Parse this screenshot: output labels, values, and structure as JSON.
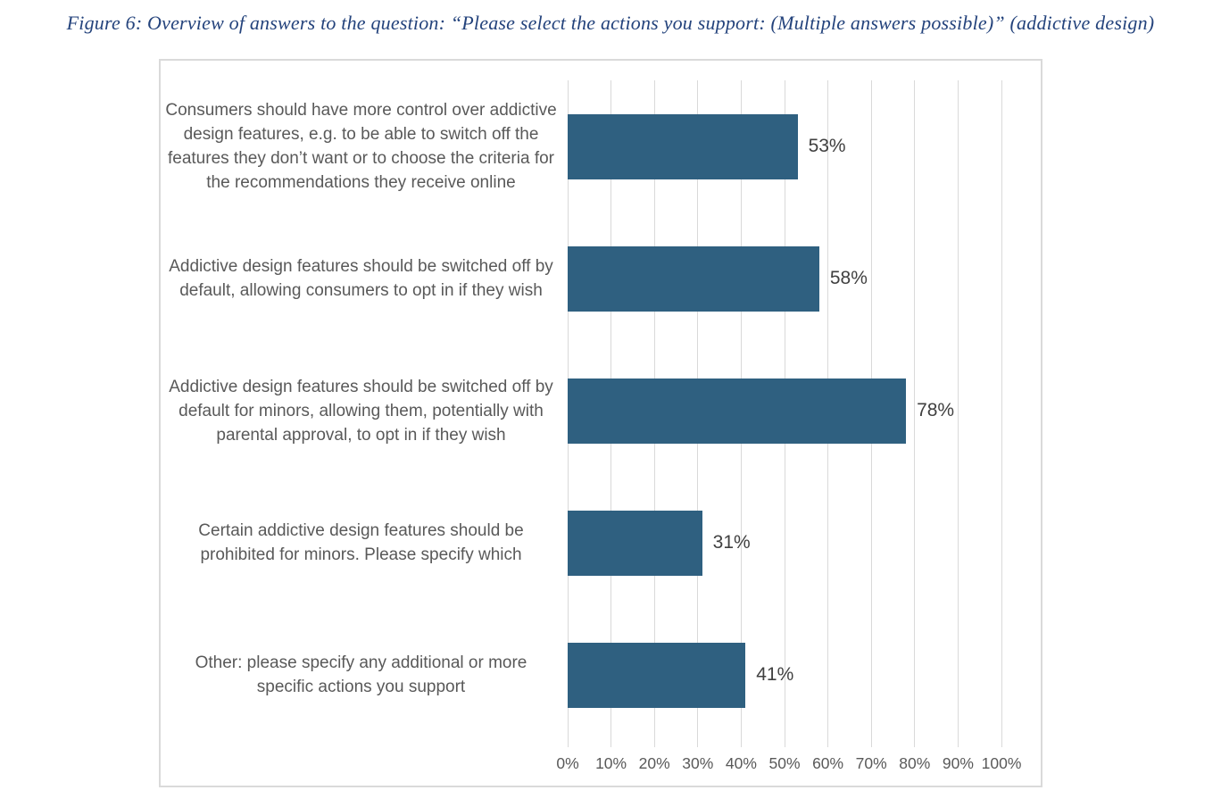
{
  "figure_caption": "Figure 6: Overview of answers to the question: “Please select the actions you support: (Multiple answers possible)” (addictive design)",
  "chart_data": {
    "type": "bar",
    "orientation": "horizontal",
    "title": "",
    "categories": [
      "Consumers should have more control over addictive design features, e.g. to be able to switch off the features they don’t want or to choose the criteria for the recommendations they receive online",
      "Addictive design features should be switched off by default, allowing consumers to opt in if they wish",
      "Addictive design features should be switched off by default for minors, allowing them, potentially with parental approval, to opt in if they wish",
      "Certain addictive design features should be prohibited for minors. Please specify which",
      "Other: please specify any additional or more specific actions you support"
    ],
    "values": [
      53,
      58,
      78,
      31,
      41
    ],
    "value_labels": [
      "53%",
      "58%",
      "78%",
      "31%",
      "41%"
    ],
    "x_ticks": [
      "0%",
      "10%",
      "20%",
      "30%",
      "40%",
      "50%",
      "60%",
      "70%",
      "80%",
      "90%",
      "100%"
    ],
    "xlim": [
      0,
      100
    ],
    "grid": "vertical-gridlines",
    "legend": "none",
    "colors": {
      "bar": "#2F6080",
      "category_label": "#595959",
      "value_label": "#404040",
      "tick_label": "#595959",
      "gridline": "#D9D9D9",
      "frame_border": "#DADADA",
      "caption": "#24437C"
    }
  }
}
